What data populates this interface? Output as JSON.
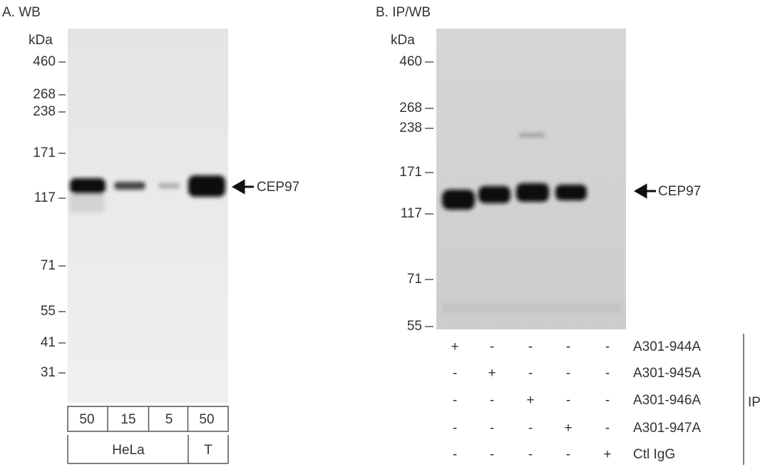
{
  "panel_a": {
    "title": "A. WB",
    "unit": "kDa",
    "markers": [
      "460",
      "268",
      "238",
      "171",
      "117",
      "71",
      "55",
      "41",
      "31"
    ],
    "target": "CEP97",
    "lanes": [
      "50",
      "15",
      "5",
      "50"
    ],
    "groups": [
      "HeLa",
      "T"
    ]
  },
  "panel_b": {
    "title": "B. IP/WB",
    "unit": "kDa",
    "markers": [
      "460",
      "268",
      "238",
      "171",
      "117",
      "71",
      "55"
    ],
    "target": "CEP97",
    "rows": [
      {
        "label": "A301-944A",
        "signs": [
          "+",
          "-",
          "-",
          "-",
          "-"
        ]
      },
      {
        "label": "A301-945A",
        "signs": [
          "-",
          "+",
          "-",
          "-",
          "-"
        ]
      },
      {
        "label": "A301-946A",
        "signs": [
          "-",
          "-",
          "+",
          "-",
          "-"
        ]
      },
      {
        "label": "A301-947A",
        "signs": [
          "-",
          "-",
          "-",
          "+",
          "-"
        ]
      },
      {
        "label": "Ctl IgG",
        "signs": [
          "-",
          "-",
          "-",
          "-",
          "+"
        ]
      }
    ],
    "group_label": "IP"
  }
}
